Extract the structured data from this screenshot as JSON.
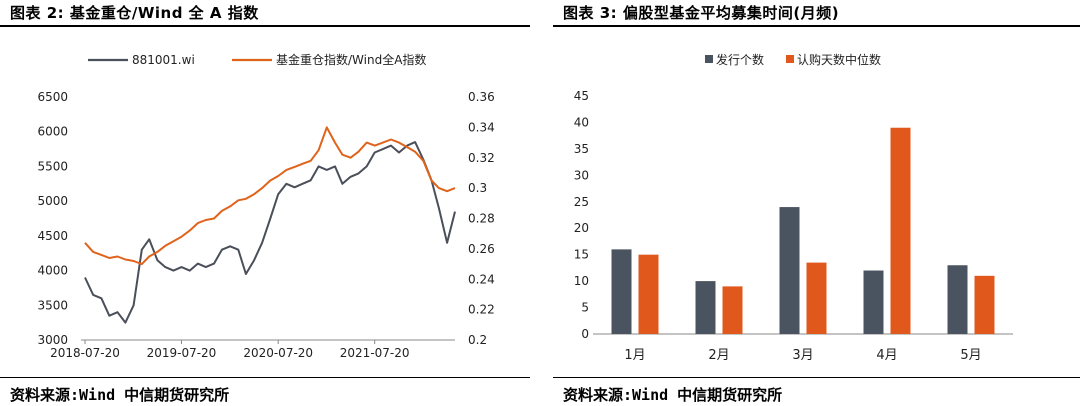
{
  "left": {
    "figure_title": "图表 2:  基金重仓/Wind 全 A 指数",
    "source": "资料来源:Wind  中信期货研究所",
    "chart_data": {
      "type": "line",
      "series": [
        {
          "name": "881001.wi",
          "axis": "left",
          "color": "#4a4f5a",
          "x": [
            "2018-07-20",
            "2018-08-20",
            "2018-09-20",
            "2018-10-20",
            "2018-11-20",
            "2018-12-20",
            "2019-01-20",
            "2019-02-20",
            "2019-03-20",
            "2019-04-20",
            "2019-05-20",
            "2019-06-20",
            "2019-07-20",
            "2019-08-20",
            "2019-09-20",
            "2019-10-20",
            "2019-11-20",
            "2019-12-20",
            "2020-01-20",
            "2020-02-20",
            "2020-03-20",
            "2020-04-20",
            "2020-05-20",
            "2020-06-20",
            "2020-07-20",
            "2020-08-20",
            "2020-09-20",
            "2020-10-20",
            "2020-11-20",
            "2020-12-20",
            "2021-01-20",
            "2021-02-20",
            "2021-03-20",
            "2021-04-20",
            "2021-05-20",
            "2021-06-20",
            "2021-07-20",
            "2021-08-20",
            "2021-09-20",
            "2021-10-20",
            "2021-11-20",
            "2021-12-20",
            "2022-01-20",
            "2022-02-20",
            "2022-03-20",
            "2022-04-20",
            "2022-05-20"
          ],
          "values": [
            3900,
            3650,
            3600,
            3350,
            3400,
            3250,
            3500,
            4300,
            4450,
            4150,
            4050,
            4000,
            4050,
            4000,
            4100,
            4050,
            4100,
            4300,
            4350,
            4300,
            3950,
            4150,
            4400,
            4750,
            5100,
            5250,
            5200,
            5250,
            5300,
            5500,
            5450,
            5500,
            5250,
            5350,
            5400,
            5500,
            5700,
            5750,
            5800,
            5700,
            5800,
            5850,
            5600,
            5300,
            4900,
            4400,
            4850
          ]
        },
        {
          "name": "基金重仓指数/Wind全A指数",
          "axis": "right",
          "color": "#e0631b",
          "x": [
            "2018-07-20",
            "2018-08-20",
            "2018-09-20",
            "2018-10-20",
            "2018-11-20",
            "2018-12-20",
            "2019-01-20",
            "2019-02-20",
            "2019-03-20",
            "2019-04-20",
            "2019-05-20",
            "2019-06-20",
            "2019-07-20",
            "2019-08-20",
            "2019-09-20",
            "2019-10-20",
            "2019-11-20",
            "2019-12-20",
            "2020-01-20",
            "2020-02-20",
            "2020-03-20",
            "2020-04-20",
            "2020-05-20",
            "2020-06-20",
            "2020-07-20",
            "2020-08-20",
            "2020-09-20",
            "2020-10-20",
            "2020-11-20",
            "2020-12-20",
            "2021-01-20",
            "2021-02-20",
            "2021-03-20",
            "2021-04-20",
            "2021-05-20",
            "2021-06-20",
            "2021-07-20",
            "2021-08-20",
            "2021-09-20",
            "2021-10-20",
            "2021-11-20",
            "2021-12-20",
            "2022-01-20",
            "2022-02-20",
            "2022-03-20",
            "2022-04-20",
            "2022-05-20"
          ],
          "values": [
            0.264,
            0.258,
            0.256,
            0.254,
            0.255,
            0.253,
            0.252,
            0.25,
            0.255,
            0.258,
            0.262,
            0.265,
            0.268,
            0.272,
            0.277,
            0.279,
            0.28,
            0.285,
            0.288,
            0.292,
            0.293,
            0.296,
            0.3,
            0.305,
            0.308,
            0.312,
            0.314,
            0.316,
            0.318,
            0.325,
            0.34,
            0.33,
            0.322,
            0.32,
            0.324,
            0.33,
            0.328,
            0.33,
            0.332,
            0.33,
            0.327,
            0.324,
            0.318,
            0.305,
            0.3,
            0.298,
            0.3
          ]
        }
      ],
      "x_ticks": [
        "2018-07-20",
        "2019-07-20",
        "2020-07-20",
        "2021-07-20"
      ],
      "y_left": {
        "min": 3000,
        "max": 6500,
        "ticks": [
          "6500",
          "6000",
          "5500",
          "5000",
          "4500",
          "4000",
          "3500",
          "3000"
        ]
      },
      "y_right": {
        "min": 0.2,
        "max": 0.36,
        "ticks": [
          "0.36",
          "0.34",
          "0.32",
          "0.3",
          "0.28",
          "0.26",
          "0.24",
          "0.22",
          "0.2"
        ]
      },
      "legend_position": "top",
      "grid": false
    }
  },
  "right": {
    "figure_title": "图表 3:  偏股型基金平均募集时间(月频)",
    "source": "资料来源:Wind  中信期货研究所",
    "chart_data": {
      "type": "bar",
      "categories": [
        "1月",
        "2月",
        "3月",
        "4月",
        "5月"
      ],
      "series": [
        {
          "name": "发行个数",
          "color": "#4a5461",
          "values": [
            16,
            10,
            24,
            12,
            13
          ]
        },
        {
          "name": "认购天数中位数",
          "color": "#e0581b",
          "values": [
            15,
            9,
            13.5,
            39,
            11
          ]
        }
      ],
      "y": {
        "min": 0,
        "max": 45,
        "ticks": [
          "45",
          "40",
          "35",
          "30",
          "25",
          "20",
          "15",
          "10",
          "5",
          "0"
        ]
      },
      "legend_position": "top",
      "grid": false
    }
  }
}
